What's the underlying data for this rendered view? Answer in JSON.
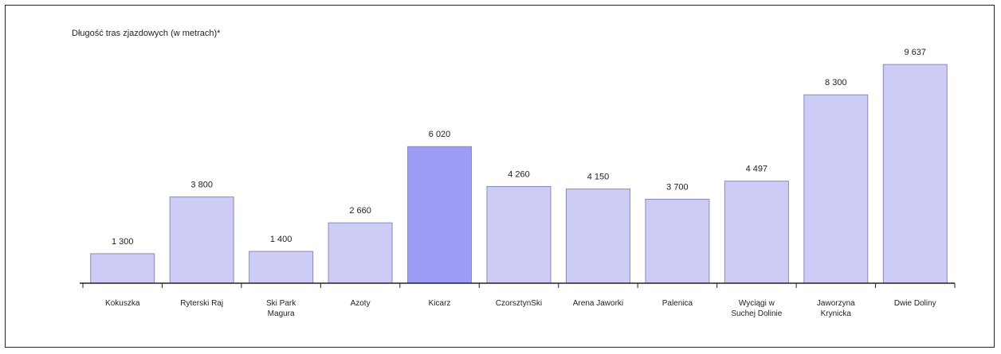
{
  "chart_data": {
    "type": "bar",
    "title": "Długość tras zjazdowych (w metrach)*",
    "xlabel": "",
    "ylabel": "",
    "ylim": [
      0,
      10000
    ],
    "grid": false,
    "highlight_index": 4,
    "colors": {
      "bar": "#ccccf7",
      "highlight": "#9d9df5",
      "bar_border": "#8a8ab0"
    },
    "categories": [
      "Kokuszka",
      "Ryterski Raj",
      "Ski Park Magura",
      "Azoty",
      "Kicarz",
      "CzorsztynSki",
      "Arena Jaworki",
      "Palenica",
      "Wyciągi w Suchej Dolinie",
      "Jaworzyna Krynicka",
      "Dwie Doliny"
    ],
    "category_lines": [
      [
        "Kokuszka"
      ],
      [
        "Ryterski Raj"
      ],
      [
        "Ski Park",
        "Magura"
      ],
      [
        "Azoty"
      ],
      [
        "Kicarz"
      ],
      [
        "CzorsztynSki"
      ],
      [
        "Arena Jaworki"
      ],
      [
        "Palenica"
      ],
      [
        "Wyciągi w",
        "Suchej Dolinie"
      ],
      [
        "Jaworzyna",
        "Krynicka"
      ],
      [
        "Dwie Doliny"
      ]
    ],
    "values": [
      1300,
      3800,
      1400,
      2660,
      6020,
      4260,
      4150,
      3700,
      4497,
      8300,
      9637
    ],
    "value_labels": [
      "1 300",
      "3 800",
      "1 400",
      "2 660",
      "6 020",
      "4 260",
      "4 150",
      "3 700",
      "4 497",
      "8 300",
      "9 637"
    ]
  }
}
